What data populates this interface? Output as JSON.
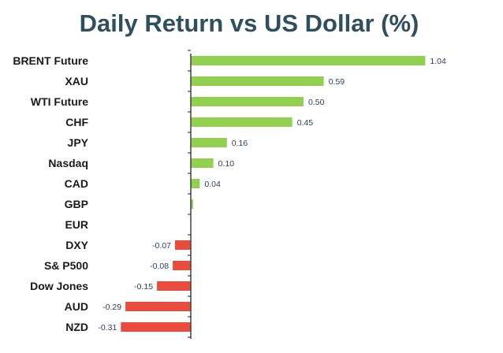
{
  "chart_data": {
    "type": "bar",
    "orientation": "horizontal",
    "title": "Daily Return vs US Dollar (%)",
    "xlabel": "",
    "ylabel": "",
    "categories": [
      "BRENT Future",
      "XAU",
      "WTI Future",
      "CHF",
      "JPY",
      "Nasdaq",
      "CAD",
      "GBP",
      "EUR",
      "DXY",
      "S& P500",
      "Dow Jones",
      "AUD",
      "NZD"
    ],
    "values": [
      1.04,
      0.59,
      0.5,
      0.45,
      0.16,
      0.1,
      0.04,
      0.01,
      0.0,
      -0.07,
      -0.08,
      -0.15,
      -0.29,
      -0.31
    ],
    "value_labels": [
      "1.04",
      "0.59",
      "0.50",
      "0.45",
      "0.16",
      "0.10",
      "0.04",
      "",
      "",
      "-0.07",
      "-0.08",
      "-0.15",
      "-0.29",
      "-0.31"
    ],
    "grid": false,
    "legend": "none",
    "colors": {
      "positive": "#92d050",
      "negative": "#e84c3d",
      "title": "#2f4f5f",
      "axis": "#404040",
      "value_text": "#2f3f5f"
    }
  }
}
